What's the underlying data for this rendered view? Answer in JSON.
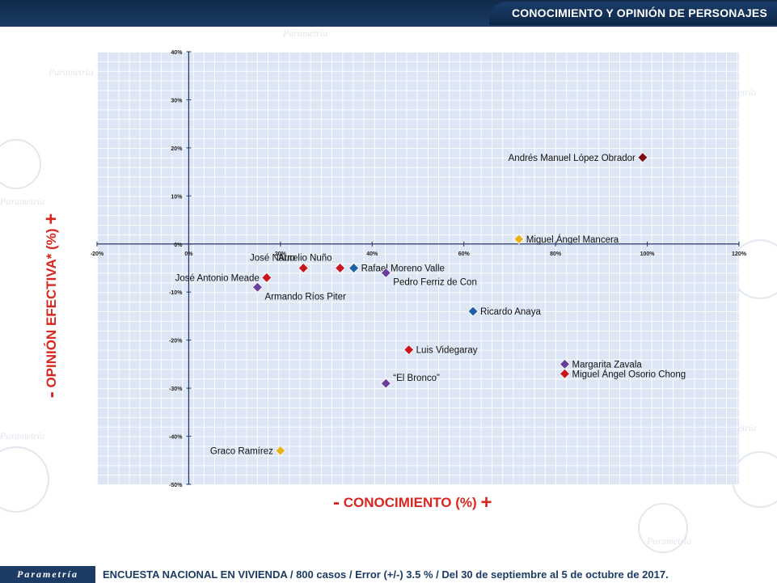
{
  "header": {
    "title": "CONOCIMIENTO Y OPINIÓN DE PERSONAJES"
  },
  "watermark_text": "Parametría",
  "footer": {
    "brand": "Parametría",
    "note": "ENCUESTA NACIONAL EN VIVIENDA / 800 casos / Error (+/-) 3.5 % / Del 30 de septiembre al 5 de octubre de 2017."
  },
  "axis_titles": {
    "y_minus": "-",
    "y_text": "OPINIÓN EFECTIVA* (%)",
    "y_plus": "+",
    "x_minus": "-",
    "x_text": "CONOCIMIENTO (%)",
    "x_plus": "+"
  },
  "colors": {
    "dark_red": "#7a1016",
    "red": "#c8161d",
    "blue": "#1f5fa8",
    "purple": "#6a3d9a",
    "yellow": "#e7b41c",
    "axis_title": "#d9271f",
    "brand_navy": "#1c3c66"
  },
  "chart_data": {
    "type": "scatter",
    "xlabel": "CONOCIMIENTO (%)",
    "ylabel": "OPINIÓN EFECTIVA* (%)",
    "xlim": [
      -20,
      120
    ],
    "ylim": [
      -50,
      40
    ],
    "xticks": [
      "-20%",
      "0%",
      "20%",
      "40%",
      "60%",
      "80%",
      "100%",
      "120%"
    ],
    "yticks": [
      "40%",
      "30%",
      "20%",
      "10%",
      "0%",
      "-10%",
      "-20%",
      "-30%",
      "-40%",
      "-50%"
    ],
    "grid": true,
    "points": [
      {
        "label": "Andrés Manuel López Obrador",
        "x": 99,
        "y": 18,
        "color": "dark_red",
        "label_pos": "left"
      },
      {
        "label": "Miguel Ángel Mancera",
        "x": 72,
        "y": 1,
        "color": "yellow",
        "label_pos": "right"
      },
      {
        "label": "José Narro",
        "x": 25,
        "y": -5,
        "color": "red",
        "label_pos": "above-left"
      },
      {
        "label": "Aurelio Nuño",
        "x": 33,
        "y": -5,
        "color": "red",
        "label_pos": "above-left"
      },
      {
        "label": "Rafael Moreno Valle",
        "x": 36,
        "y": -5,
        "color": "blue",
        "label_pos": "right"
      },
      {
        "label": "José Antonio Meade",
        "x": 17,
        "y": -7,
        "color": "red",
        "label_pos": "left"
      },
      {
        "label": "Pedro Ferriz de Con",
        "x": 43,
        "y": -6,
        "color": "purple",
        "label_pos": "below-right"
      },
      {
        "label": "Armando Ríos Piter",
        "x": 15,
        "y": -9,
        "color": "purple",
        "label_pos": "below-right"
      },
      {
        "label": "Ricardo Anaya",
        "x": 62,
        "y": -14,
        "color": "blue",
        "label_pos": "right"
      },
      {
        "label": "Luis Videgaray",
        "x": 48,
        "y": -22,
        "color": "red",
        "label_pos": "right"
      },
      {
        "label": "Margarita Zavala",
        "x": 82,
        "y": -25,
        "color": "purple",
        "label_pos": "right"
      },
      {
        "label": "Miguel Ángel Osorio Chong",
        "x": 82,
        "y": -27,
        "color": "red",
        "label_pos": "right"
      },
      {
        "label": "“El Bronco”",
        "x": 43,
        "y": -29,
        "color": "purple",
        "label_pos": "above-right"
      },
      {
        "label": "Graco Ramírez",
        "x": 20,
        "y": -43,
        "color": "yellow",
        "label_pos": "left"
      }
    ]
  }
}
